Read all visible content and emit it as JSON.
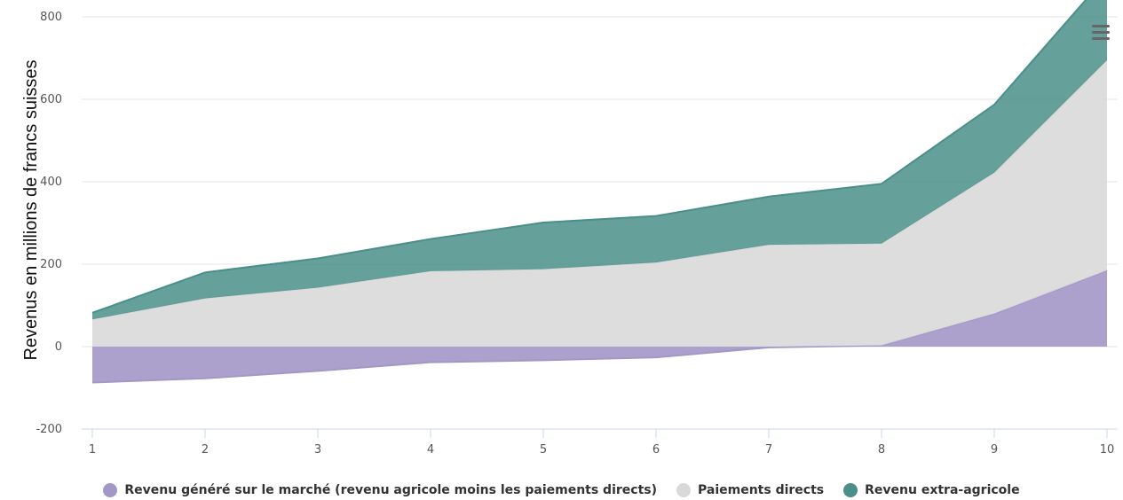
{
  "chart_data": {
    "type": "area",
    "stacked": true,
    "x": [
      1,
      2,
      3,
      4,
      5,
      6,
      7,
      8,
      9,
      10
    ],
    "ylabel": "Revenus en millions de francs suisses",
    "ylim": [
      -200,
      800
    ],
    "yticks": [
      -200,
      0,
      200,
      400,
      600,
      800
    ],
    "grid": true,
    "legend_position": "bottom",
    "series": [
      {
        "name": "Revenu généré sur le marché (revenu agricole moins les paiements directs)",
        "color": "#a397c6",
        "values": [
          -87,
          -77,
          -59,
          -38,
          -33,
          -26,
          -2,
          3,
          80,
          185
        ]
      },
      {
        "name": "Paiements directs",
        "color": "#d9d9d9",
        "values": [
          66,
          117,
          143,
          183,
          188,
          204,
          247,
          247,
          342,
          510
        ]
      },
      {
        "name": "Revenu extra-agricole",
        "color": "#4a8f8a",
        "values": [
          16,
          63,
          71,
          78,
          113,
          113,
          117,
          145,
          165,
          205
        ]
      }
    ]
  },
  "ui": {
    "menu_icon": "hamburger-menu-icon"
  }
}
